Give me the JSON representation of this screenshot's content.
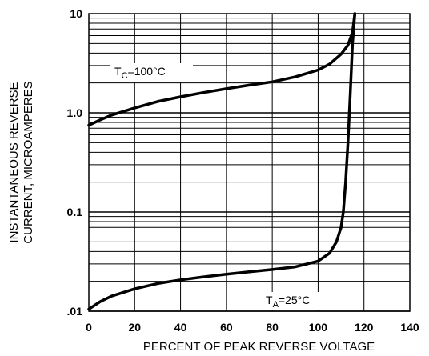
{
  "chart_data": {
    "type": "line",
    "title": "",
    "xlabel": "PERCENT OF PEAK REVERSE VOLTAGE",
    "ylabel_lines": [
      "INSTANTANEOUS REVERSE",
      "CURRENT, MICROAMPERES"
    ],
    "xlim": [
      0,
      140
    ],
    "ylim": [
      0.01,
      10
    ],
    "yscale": "log",
    "grid": true,
    "x_ticks": [
      0,
      20,
      40,
      60,
      80,
      100,
      120,
      140
    ],
    "x_tick_labels": [
      "0",
      "20",
      "40",
      "60",
      "80",
      "100",
      "120",
      "140"
    ],
    "y_ticks": [
      0.01,
      0.1,
      1.0,
      10
    ],
    "y_tick_labels": [
      ".01",
      "0.1",
      "1.0",
      "10"
    ],
    "series": [
      {
        "label_main": "T",
        "label_sub": "C",
        "label_rest": "=100°C",
        "x": [
          0,
          5,
          10,
          20,
          30,
          40,
          50,
          60,
          70,
          80,
          90,
          100,
          105,
          110,
          113,
          115,
          116
        ],
        "y": [
          0.75,
          0.85,
          0.95,
          1.12,
          1.3,
          1.45,
          1.6,
          1.75,
          1.9,
          2.05,
          2.3,
          2.7,
          3.1,
          3.9,
          4.8,
          6.5,
          10
        ]
      },
      {
        "label_main": "T",
        "label_sub": "A",
        "label_rest": "=25°C",
        "x": [
          0,
          5,
          10,
          20,
          30,
          40,
          50,
          60,
          70,
          80,
          90,
          100,
          105,
          108,
          110,
          111,
          112,
          113,
          114,
          115,
          116
        ],
        "y": [
          0.0105,
          0.0125,
          0.0142,
          0.0168,
          0.019,
          0.0207,
          0.0222,
          0.0236,
          0.025,
          0.0263,
          0.028,
          0.032,
          0.0385,
          0.05,
          0.07,
          0.1,
          0.2,
          0.5,
          1.5,
          5,
          10
        ]
      }
    ]
  }
}
